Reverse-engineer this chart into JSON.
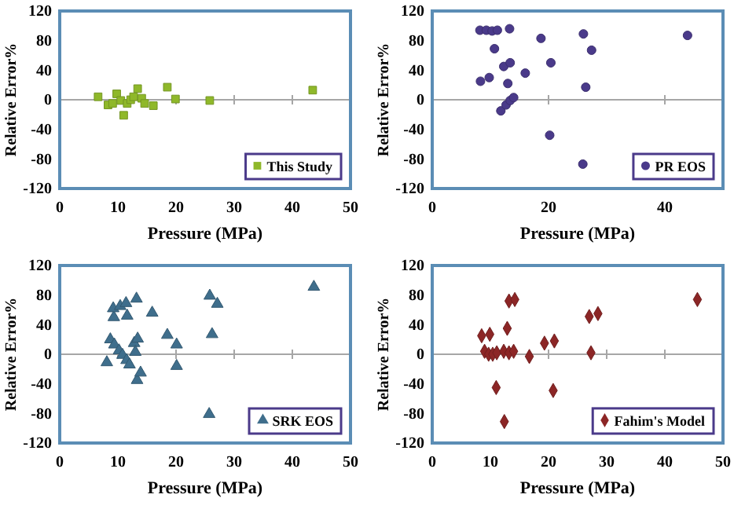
{
  "chart_data": [
    {
      "type": "scatter",
      "xlabel": "Pressure (MPa)",
      "ylabel": "Relative Error%",
      "xlim": [
        0,
        50
      ],
      "xticks": [
        0,
        10,
        20,
        30,
        40,
        50
      ],
      "ylim": [
        -120,
        120
      ],
      "yticks": [
        -120,
        -80,
        -40,
        0,
        40,
        80,
        120
      ],
      "marker": "square",
      "legend": "bottom right",
      "ref_lines": [
        {
          "axis": "y",
          "value": 0,
          "color": "#a6a6a6"
        }
      ],
      "series": [
        {
          "name": "This Study",
          "color": "#8fb82a",
          "x": [
            6.6,
            8.3,
            9.1,
            9.8,
            10.5,
            11,
            11.6,
            12.2,
            12.7,
            13.4,
            14.1,
            14.6,
            16.1,
            18.5,
            19.9,
            25.8,
            43.5
          ],
          "values": [
            4,
            -7,
            -5,
            8,
            -1,
            -21,
            -5,
            0,
            4,
            15,
            2,
            -5,
            -8,
            17,
            1,
            -1,
            13
          ]
        }
      ]
    },
    {
      "type": "scatter",
      "xlabel": "Pressure (MPa)",
      "ylabel": "Relative Error%",
      "xlim": [
        0,
        50
      ],
      "xticks": [
        0,
        20,
        40
      ],
      "ylim": [
        -120,
        120
      ],
      "yticks": [
        -120,
        -80,
        -40,
        0,
        40,
        80,
        120
      ],
      "marker": "circle",
      "legend": "bottom right",
      "ref_lines": [
        {
          "axis": "y",
          "value": 0,
          "color": "#a6a6a6"
        }
      ],
      "series": [
        {
          "name": "PR EOS",
          "color": "#4a3a8a",
          "x": [
            8.2,
            9.3,
            10.3,
            11.2,
            13.3,
            10.7,
            8.3,
            9.8,
            12.3,
            13.4,
            13,
            11.8,
            12.7,
            13.4,
            14,
            16,
            18.7,
            20.4,
            20.2,
            26,
            26.4,
            27.4,
            25.9,
            43.9
          ],
          "values": [
            94,
            94,
            93,
            94,
            96,
            69,
            25,
            30,
            45,
            50,
            22,
            -15,
            -7,
            -1,
            3,
            36,
            83,
            50,
            -48,
            89,
            17,
            67,
            -87,
            87
          ]
        }
      ]
    },
    {
      "type": "scatter",
      "xlabel": "Pressure (MPa)",
      "ylabel": "Relative Error%",
      "xlim": [
        0,
        50
      ],
      "xticks": [
        0,
        10,
        20,
        30,
        40,
        50
      ],
      "ylim": [
        -120,
        120
      ],
      "yticks": [
        -120,
        -80,
        -40,
        0,
        40,
        80,
        120
      ],
      "marker": "triangle",
      "legend": "bottom right",
      "ref_lines": [
        {
          "axis": "y",
          "value": 0,
          "color": "#a6a6a6"
        }
      ],
      "series": [
        {
          "name": "SRK EOS",
          "color": "#3f6e8c",
          "x": [
            8.1,
            8.7,
            9.3,
            9.2,
            10.4,
            11.4,
            9.4,
            10.2,
            10.8,
            11.5,
            12,
            11.6,
            12.8,
            13,
            13.2,
            13.4,
            13.3,
            13.9,
            15.9,
            18.5,
            20.1,
            20.1,
            25.8,
            26.2,
            27.1,
            25.7,
            43.7
          ],
          "values": [
            -11,
            20,
            50,
            62,
            65,
            69,
            13,
            5,
            -1,
            -8,
            -14,
            52,
            15,
            3,
            75,
            21,
            -35,
            -25,
            56,
            26,
            13,
            -16,
            79,
            27,
            68,
            -81,
            91
          ]
        }
      ]
    },
    {
      "type": "scatter",
      "xlabel": "Pressure (MPa)",
      "ylabel": "Relative Error%",
      "xlim": [
        0,
        50
      ],
      "xticks": [
        0,
        10,
        20,
        30,
        40,
        50
      ],
      "ylim": [
        -120,
        120
      ],
      "yticks": [
        -120,
        -80,
        -40,
        0,
        40,
        80,
        120
      ],
      "marker": "diamond",
      "legend": "bottom right",
      "ref_lines": [
        {
          "axis": "y",
          "value": 0,
          "color": "#a6a6a6"
        }
      ],
      "series": [
        {
          "name": "Fahim's Model",
          "color": "#8c2626",
          "x": [
            8.5,
            9.9,
            9,
            9.7,
            10.4,
            11.1,
            12.3,
            12.9,
            13.2,
            14.2,
            13.2,
            14,
            11,
            12.4,
            16.7,
            19.3,
            21,
            20.8,
            27,
            28.5,
            27.3,
            45.6
          ],
          "values": [
            25,
            27,
            4,
            0,
            0,
            2,
            4,
            35,
            72,
            74,
            2,
            4,
            -45,
            -91,
            -3,
            15,
            18,
            -49,
            51,
            55,
            2,
            74
          ]
        }
      ]
    }
  ]
}
